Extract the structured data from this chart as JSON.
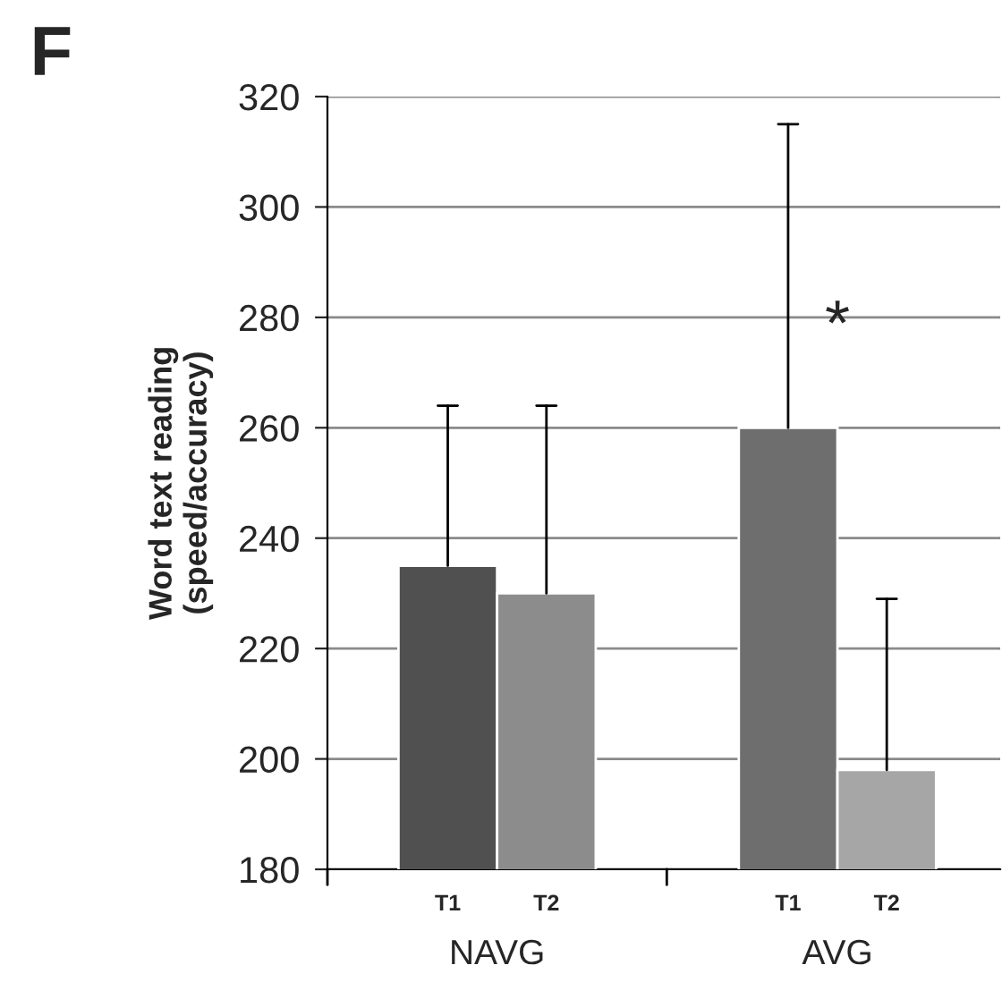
{
  "chart_data": {
    "type": "bar",
    "title": "F",
    "ylabel": "Word text reading\n(speed/accuracy)",
    "categories": [
      "T1",
      "T2",
      "T1",
      "T2"
    ],
    "values": [
      235,
      230,
      260,
      198
    ],
    "colors": [
      "#505050",
      "#8c8c8c",
      "#6e6e6e",
      "#a6a6a6"
    ],
    "errors": [
      [
        235,
        264
      ],
      [
        230,
        264
      ],
      [
        260,
        315
      ],
      [
        198,
        229
      ]
    ],
    "ylim": [
      180,
      320
    ],
    "yticks": [
      180,
      200,
      220,
      240,
      260,
      280,
      300,
      320
    ],
    "grid": "y",
    "annotations": [
      "NAVG",
      "AVG",
      "*"
    ]
  }
}
